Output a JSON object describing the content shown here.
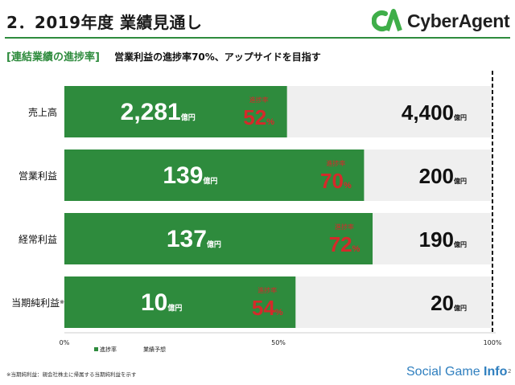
{
  "header": {
    "title": "2．2019年度 業績見通し",
    "subtitle_bracket": "[連結業績の進捗率]",
    "subtitle_text": "営業利益の進捗率70%、アップサイドを目指す"
  },
  "logo": {
    "text": "CyberAgent",
    "mark": "CA"
  },
  "footer": {
    "note": "※当期純利益：親会社株主に帰属する当期純利益を示す",
    "watermark_a": "Social Game ",
    "watermark_b": "Info",
    "page": "2"
  },
  "colors": {
    "actual": "#2e8b3d",
    "forecast": "#efefef",
    "progress": "#d42a2a",
    "accent": "#2e8b3d"
  },
  "chart_data": {
    "type": "bar",
    "orientation": "horizontal",
    "unit": "億円",
    "categories": [
      "売上高",
      "営業利益",
      "経常利益",
      "当期純利益"
    ],
    "category_marks": [
      "",
      "",
      "",
      "※"
    ],
    "actual_labels": [
      "2,281",
      "139",
      "137",
      "10"
    ],
    "forecast_labels": [
      "4,400",
      "200",
      "190",
      "20"
    ],
    "series": [
      {
        "name": "進捗率",
        "values": [
          52,
          70,
          72,
          54
        ]
      },
      {
        "name": "業績予想",
        "values": [
          100,
          100,
          100,
          100
        ]
      }
    ],
    "progress_label": "進捗率",
    "progress_unit": "%",
    "xticks": [
      "0%",
      "50%",
      "100%"
    ],
    "xlim": [
      0,
      100
    ],
    "legend_position": "bottom-left",
    "grid": false
  }
}
